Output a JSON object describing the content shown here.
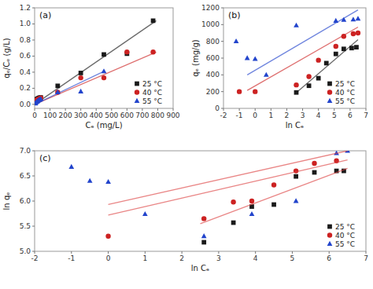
{
  "chart_data": [
    {
      "type": "scatter",
      "title": "(a)",
      "x_label": "Cₑ (mg/L)",
      "y_label": "qₑ/Cₑ (g/L)",
      "xlim": [
        0,
        900
      ],
      "ylim": [
        -0.05,
        1.2
      ],
      "xticks": [
        0,
        100,
        200,
        300,
        400,
        500,
        600,
        700,
        800,
        900
      ],
      "yticks": [
        {
          "value": 0,
          "label": "0.0"
        },
        0.2,
        0.4,
        0.6,
        0.8,
        {
          "value": 1,
          "label": "1.0"
        },
        1.2
      ],
      "grid": false,
      "legend": "lower right",
      "series": [
        {
          "name": "25 °C",
          "type": "scatter",
          "color": "#1a1a1a",
          "marker": "square",
          "x": [
            5,
            8,
            12,
            16,
            20,
            25,
            30,
            35,
            40,
            150,
            300,
            450,
            600,
            770
          ],
          "values": [
            0.045,
            0.055,
            0.06,
            0.065,
            0.07,
            0.075,
            0.08,
            0.082,
            0.085,
            0.23,
            0.39,
            0.62,
            0.63,
            1.04
          ]
        },
        {
          "type": "line",
          "color": "#1a1a1a",
          "x": [
            0,
            790
          ],
          "values": [
            0.0,
            1.04
          ]
        },
        {
          "name": "40 °C",
          "type": "scatter",
          "color": "#cc2222",
          "marker": "circle",
          "x": [
            5,
            8,
            12,
            16,
            20,
            25,
            30,
            35,
            40,
            150,
            300,
            450,
            600,
            770
          ],
          "values": [
            0.035,
            0.045,
            0.05,
            0.055,
            0.06,
            0.065,
            0.07,
            0.075,
            0.08,
            0.15,
            0.33,
            0.33,
            0.65,
            0.65
          ]
        },
        {
          "type": "line",
          "color": "#cc2222",
          "x": [
            0,
            790
          ],
          "values": [
            0.0,
            0.65
          ]
        },
        {
          "name": "55 °C",
          "type": "scatter",
          "color": "#2244cc",
          "marker": "triangle",
          "x": [
            5,
            8,
            12,
            16,
            20,
            25,
            30,
            35,
            40,
            150,
            300,
            450
          ],
          "values": [
            0.01,
            0.02,
            0.03,
            0.035,
            0.04,
            0.05,
            0.055,
            0.06,
            0.065,
            0.15,
            0.16,
            0.41
          ]
        },
        {
          "type": "line",
          "color": "#2244cc",
          "x": [
            0,
            450
          ],
          "values": [
            0.0,
            0.41
          ]
        }
      ]
    },
    {
      "type": "scatter",
      "title": "(b)",
      "x_label": "ln Cₑ",
      "y_label": "qₑ (mg/g)",
      "xlim": [
        -2,
        7
      ],
      "ylim": [
        0,
        1200
      ],
      "xticks": [
        -2,
        -1,
        0,
        1,
        2,
        3,
        4,
        5,
        6,
        7
      ],
      "yticks": [
        0,
        200,
        400,
        600,
        800,
        1000,
        1200
      ],
      "grid": false,
      "legend": "lower right",
      "series": [
        {
          "name": "25 °C",
          "type": "scatter",
          "color": "#1a1a1a",
          "marker": "square",
          "x": [
            2.6,
            3.4,
            4.0,
            4.5,
            5.1,
            5.6,
            6.1,
            6.4
          ],
          "values": [
            190,
            270,
            360,
            540,
            650,
            710,
            720,
            730
          ]
        },
        {
          "type": "line",
          "color": "#1a1a1a",
          "x": [
            2.5,
            6.5
          ],
          "values": [
            170,
            820
          ]
        },
        {
          "name": "40 °C",
          "type": "scatter",
          "color": "#cc2222",
          "marker": "circle",
          "x": [
            -1.0,
            0.0,
            2.6,
            3.4,
            4.0,
            5.1,
            5.6,
            6.2,
            6.5
          ],
          "values": [
            200,
            200,
            280,
            380,
            575,
            740,
            860,
            890,
            900
          ]
        },
        {
          "type": "line",
          "color": "#cc2222",
          "x": [
            -0.5,
            6.5
          ],
          "values": [
            215,
            970
          ]
        },
        {
          "name": "55 °C",
          "type": "scatter",
          "color": "#2244cc",
          "marker": "triangle",
          "x": [
            -1.2,
            -0.5,
            0.0,
            0.7,
            2.6,
            5.1,
            5.6,
            6.2,
            6.5
          ],
          "values": [
            800,
            600,
            590,
            400,
            990,
            1045,
            1055,
            1060,
            1070
          ]
        },
        {
          "type": "line",
          "color": "#2244cc",
          "x": [
            -0.5,
            6.5
          ],
          "values": [
            400,
            1175
          ]
        }
      ]
    },
    {
      "type": "scatter",
      "title": "(c)",
      "x_label": "ln Cₑ",
      "y_label": "ln qₑ",
      "xlim": [
        -2,
        7
      ],
      "ylim": [
        5.0,
        7.0
      ],
      "xticks": [
        -2,
        -1,
        0,
        1,
        2,
        3,
        4,
        5,
        6,
        7
      ],
      "yticks": [
        {
          "value": 5,
          "label": "5.0"
        },
        5.5,
        {
          "value": 6,
          "label": "6.0"
        },
        6.5,
        {
          "value": 7,
          "label": "7.0"
        }
      ],
      "grid": false,
      "legend": "lower right",
      "series": [
        {
          "name": "25 °C",
          "type": "scatter",
          "color": "#1a1a1a",
          "marker": "square",
          "x": [
            2.6,
            3.4,
            3.9,
            4.5,
            5.1,
            5.6,
            6.2,
            6.4
          ],
          "values": [
            5.18,
            5.57,
            5.89,
            5.93,
            6.49,
            6.57,
            6.6,
            6.6
          ]
        },
        {
          "type": "line",
          "color": "#dd4444",
          "x": [
            2.5,
            6.5
          ],
          "values": [
            5.55,
            6.65
          ]
        },
        {
          "name": "40 °C",
          "type": "scatter",
          "color": "#cc2222",
          "marker": "circle",
          "x": [
            0.0,
            2.6,
            3.4,
            3.9,
            4.5,
            5.1,
            5.6,
            6.2
          ],
          "values": [
            5.3,
            5.65,
            5.98,
            6.0,
            6.32,
            6.6,
            6.75,
            6.8
          ]
        },
        {
          "type": "line",
          "color": "#dd4444",
          "x": [
            0.0,
            6.5
          ],
          "values": [
            5.72,
            6.82
          ]
        },
        {
          "name": "55 °C",
          "type": "scatter",
          "color": "#2244cc",
          "marker": "triangle",
          "x": [
            -1.0,
            -0.5,
            0.0,
            1.0,
            2.6,
            3.9,
            5.1,
            6.2,
            6.5
          ],
          "values": [
            6.68,
            6.4,
            6.38,
            5.74,
            5.3,
            5.74,
            6.0,
            6.95,
            7.0
          ]
        },
        {
          "type": "line",
          "color": "#dd4444",
          "x": [
            0.0,
            6.5
          ],
          "values": [
            5.93,
            7.0
          ]
        }
      ]
    }
  ]
}
